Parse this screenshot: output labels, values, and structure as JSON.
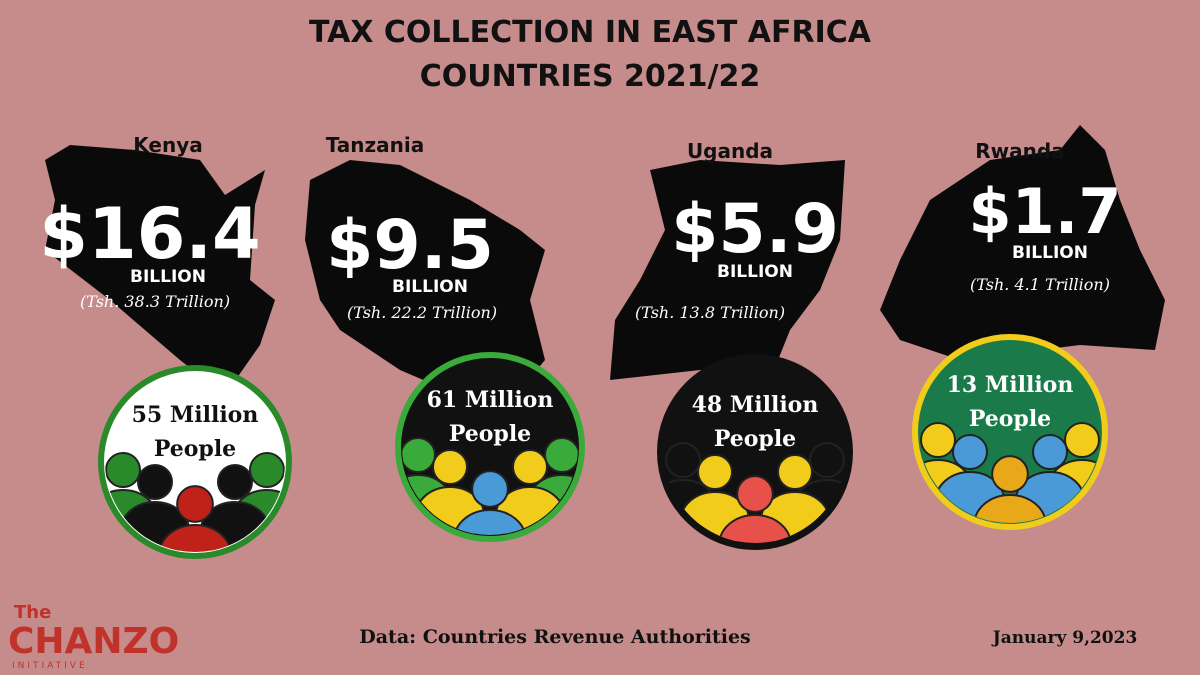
{
  "header": {
    "title_line1": "TAX COLLECTION IN EAST AFRICA",
    "title_line2": "COUNTRIES 2021/22"
  },
  "countries": [
    {
      "name": "Kenya",
      "amount": "$16.4",
      "unit": "BILLION",
      "local": "(Tsh. 38.3 Trillion)",
      "population_line1": "55 Million",
      "population_line2": "People"
    },
    {
      "name": "Tanzania",
      "amount": "$9.5",
      "unit": "BILLION",
      "local": "(Tsh.  22.2  Trillion)",
      "population_line1": "61 Million",
      "population_line2": "People"
    },
    {
      "name": "Uganda",
      "amount": "$5.9",
      "unit": "BILLION",
      "local": "(Tsh. 13.8 Trillion)",
      "population_line1": "48 Million",
      "population_line2": "People"
    },
    {
      "name": "Rwanda",
      "amount": "$1.7",
      "unit": "BILLION",
      "local": "(Tsh. 4.1  Trillion)",
      "population_line1": "13 Million",
      "population_line2": "People"
    }
  ],
  "footer": {
    "logo_the": "The",
    "logo_name": "CHANZO",
    "logo_sub": "INITIATIVE",
    "source": "Data: Countries  Revenue Authorities",
    "date": "January 9,2023"
  }
}
